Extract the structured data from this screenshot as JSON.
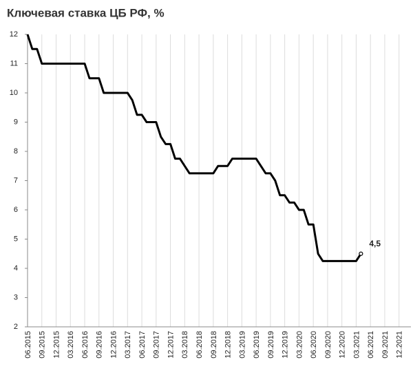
{
  "chart_data": {
    "type": "line",
    "title": "Ключевая ставка ЦБ РФ, %",
    "categories": [
      "06.2015",
      null,
      null,
      "09.2015",
      null,
      null,
      "12.2015",
      null,
      null,
      "03.2016",
      null,
      null,
      "06.2016",
      null,
      null,
      "09.2016",
      null,
      null,
      "12.2016",
      null,
      null,
      "03.2017",
      null,
      null,
      "06.2017",
      null,
      null,
      "09.2017",
      null,
      null,
      "12.2017",
      null,
      null,
      "03.2018",
      null,
      null,
      "06.2018",
      null,
      null,
      "09.2018",
      null,
      null,
      "12.2018",
      null,
      null,
      "03.2019",
      null,
      null,
      "06.2019",
      null,
      null,
      "09.2019",
      null,
      null,
      "12.2019",
      null,
      null,
      "03.2020",
      null,
      null,
      "06.2020",
      null,
      null,
      "09.2020",
      null,
      null,
      "12.2020",
      null,
      null,
      "03.2021",
      null,
      null,
      "06.2021",
      null,
      null,
      "09.2021",
      null,
      null,
      "12.2021",
      null,
      null
    ],
    "values": [
      12,
      11.5,
      11.5,
      11,
      11,
      11,
      11,
      11,
      11,
      11,
      11,
      11,
      11,
      10.5,
      10.5,
      10.5,
      10,
      10,
      10,
      10,
      10,
      10,
      9.75,
      9.25,
      9.25,
      9,
      9,
      9,
      8.5,
      8.25,
      8.25,
      7.75,
      7.75,
      7.5,
      7.25,
      7.25,
      7.25,
      7.25,
      7.25,
      7.25,
      7.5,
      7.5,
      7.5,
      7.75,
      7.75,
      7.75,
      7.75,
      7.75,
      7.75,
      7.5,
      7.25,
      7.25,
      7,
      6.5,
      6.5,
      6.25,
      6.25,
      6,
      6,
      5.5,
      5.5,
      4.5,
      4.25,
      4.25,
      4.25,
      4.25,
      4.25,
      4.25,
      4.25,
      4.25,
      4.5,
      null,
      null,
      null,
      null,
      null,
      null,
      null,
      null,
      null,
      null
    ],
    "color": "#000000",
    "annotation": "4,5",
    "ylim": [
      2,
      12
    ],
    "yticks": [
      2,
      3,
      4,
      5,
      6,
      7,
      8,
      9,
      10,
      11,
      12
    ],
    "grid": true
  }
}
